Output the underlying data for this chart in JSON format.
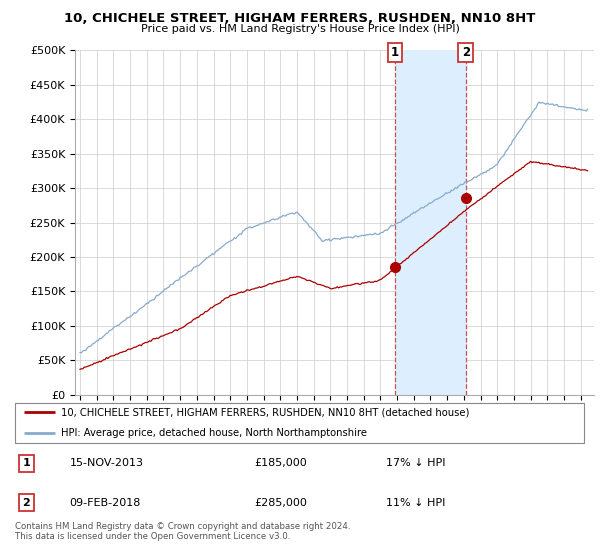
{
  "title": "10, CHICHELE STREET, HIGHAM FERRERS, RUSHDEN, NN10 8HT",
  "subtitle": "Price paid vs. HM Land Registry's House Price Index (HPI)",
  "legend_line1": "10, CHICHELE STREET, HIGHAM FERRERS, RUSHDEN, NN10 8HT (detached house)",
  "legend_line2": "HPI: Average price, detached house, North Northamptonshire",
  "annotation1": {
    "num": "1",
    "date": "15-NOV-2013",
    "price": "£185,000",
    "hpi": "17% ↓ HPI"
  },
  "annotation2": {
    "num": "2",
    "date": "09-FEB-2018",
    "price": "£285,000",
    "hpi": "11% ↓ HPI"
  },
  "footer": "Contains HM Land Registry data © Crown copyright and database right 2024.\nThis data is licensed under the Open Government Licence v3.0.",
  "house_color": "#aa0000",
  "hpi_color": "#88aacc",
  "highlight_color": "#ddeeff",
  "ylim": [
    0,
    500000
  ],
  "yticks": [
    0,
    50000,
    100000,
    150000,
    200000,
    250000,
    300000,
    350000,
    400000,
    450000,
    500000
  ],
  "sale1_x": 2013.88,
  "sale1_y": 185000,
  "sale2_x": 2018.12,
  "sale2_y": 285000,
  "vline1_x": 2013.88,
  "vline2_x": 2018.12,
  "xmin": 1994.7,
  "xmax": 2025.8
}
